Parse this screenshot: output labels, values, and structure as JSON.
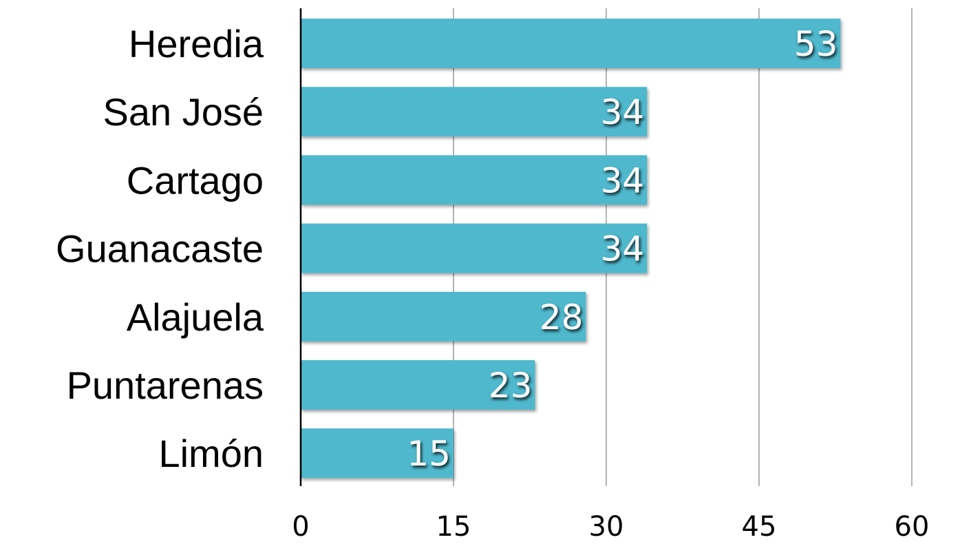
{
  "chart_data": {
    "type": "bar",
    "orientation": "horizontal",
    "title": "",
    "xlabel": "",
    "ylabel": "",
    "categories": [
      "Heredia",
      "San José",
      "Cartago",
      "Guanacaste",
      "Alajuela ",
      "Puntarenas",
      "Limón"
    ],
    "values": [
      53,
      34,
      34,
      34,
      28,
      23,
      15
    ],
    "data_labels": [
      "53",
      "34",
      "34",
      "34",
      "28",
      "23",
      "15"
    ],
    "xlim": [
      0,
      60
    ],
    "xticks": [
      0,
      15,
      30,
      45,
      60
    ],
    "xtick_labels": [
      "0",
      "15",
      "30",
      "45",
      "60"
    ],
    "grid": "vertical",
    "legend": "none",
    "bar_color": "#50B8CD",
    "grid_color": "#b3b3b3",
    "axis_color": "#000000",
    "data_label_color": "#ffffff"
  }
}
